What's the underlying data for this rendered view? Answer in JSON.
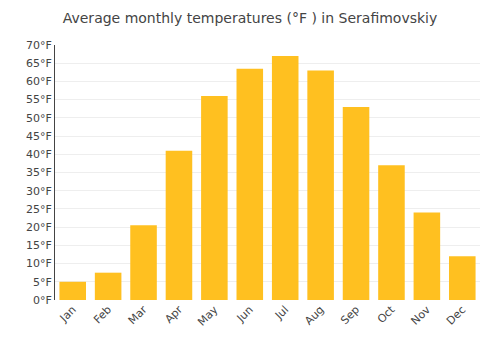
{
  "chart_data": {
    "type": "bar",
    "title": "Average monthly temperatures (°F ) in Serafimovskiy",
    "categories": [
      "Jan",
      "Feb",
      "Mar",
      "Apr",
      "May",
      "Jun",
      "Jul",
      "Aug",
      "Sep",
      "Oct",
      "Nov",
      "Dec"
    ],
    "values": [
      5,
      7.5,
      20.5,
      41,
      56,
      63.5,
      67,
      63,
      53,
      37,
      24,
      12
    ],
    "color": "#FFC020",
    "ylim": [
      0,
      70
    ],
    "yticks": [
      {
        "value": 0,
        "label": "0°F"
      },
      {
        "value": 5,
        "label": "5°F"
      },
      {
        "value": 10,
        "label": "10°F"
      },
      {
        "value": 15,
        "label": "15°F"
      },
      {
        "value": 20,
        "label": "20°F"
      },
      {
        "value": 25,
        "label": "25°F"
      },
      {
        "value": 30,
        "label": "30°F"
      },
      {
        "value": 35,
        "label": "35°F"
      },
      {
        "value": 40,
        "label": "40°F"
      },
      {
        "value": 45,
        "label": "45°F"
      },
      {
        "value": 50,
        "label": "50°F"
      },
      {
        "value": 55,
        "label": "55°F"
      },
      {
        "value": 60,
        "label": "60°F"
      },
      {
        "value": 65,
        "label": "65°F"
      },
      {
        "value": 70,
        "label": "70°F"
      }
    ],
    "grid": true
  }
}
